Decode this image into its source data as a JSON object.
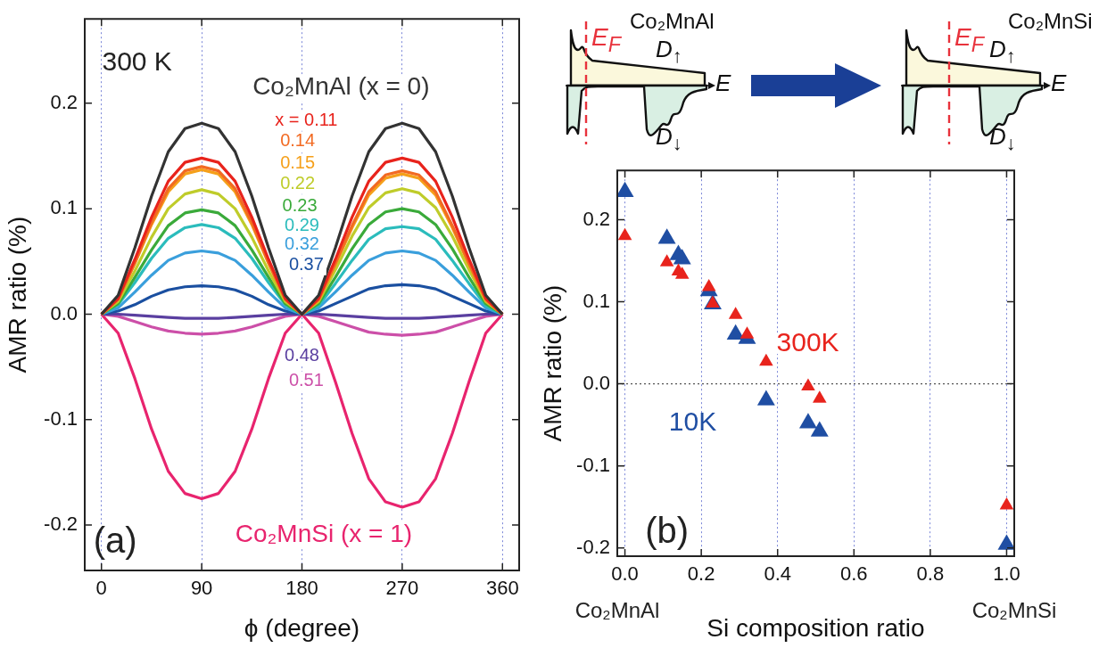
{
  "chart_data": [
    {
      "type": "line",
      "xlabel": "ϕ (degree)",
      "ylabel": "AMR ratio (%)",
      "xlim": [
        -15,
        375
      ],
      "xticks": [
        0,
        90,
        180,
        270,
        360
      ],
      "ylim": [
        -0.243,
        0.28
      ],
      "yticks": [
        {
          "value": -0.2,
          "label": "-0.2"
        },
        {
          "value": -0.1,
          "label": "-0.1"
        },
        {
          "value": 0,
          "label": "0.0"
        },
        {
          "value": 0.1,
          "label": "0.1"
        },
        {
          "value": 0.2,
          "label": "0.2"
        }
      ],
      "grid": "x",
      "legend": false,
      "marker": "none",
      "line_style": "solid",
      "annotations": [
        "300 K",
        "(a)"
      ],
      "x": [
        0,
        15,
        30,
        45,
        60,
        75,
        90,
        105,
        120,
        135,
        150,
        165,
        180,
        195,
        210,
        225,
        240,
        255,
        270,
        285,
        300,
        315,
        330,
        345,
        360
      ],
      "series": [
        {
          "name": "Co₂MnAl (x = 0)",
          "color": "#333333",
          "values": [
            0,
            0.018,
            0.063,
            0.112,
            0.154,
            0.176,
            0.181,
            0.176,
            0.154,
            0.112,
            0.063,
            0.018,
            0,
            0.018,
            0.063,
            0.112,
            0.154,
            0.176,
            0.181,
            0.176,
            0.154,
            0.112,
            0.063,
            0.018,
            0
          ]
        },
        {
          "name": "x = 0.11",
          "color": "#e8231c",
          "values": [
            0,
            0.015,
            0.052,
            0.092,
            0.126,
            0.144,
            0.148,
            0.144,
            0.126,
            0.092,
            0.052,
            0.015,
            0,
            0.015,
            0.052,
            0.092,
            0.126,
            0.144,
            0.148,
            0.144,
            0.126,
            0.092,
            0.052,
            0.015,
            0
          ]
        },
        {
          "name": "0.14",
          "color": "#f26a22",
          "values": [
            0,
            0.014,
            0.049,
            0.087,
            0.119,
            0.136,
            0.14,
            0.136,
            0.119,
            0.087,
            0.049,
            0.014,
            0,
            0.014,
            0.048,
            0.084,
            0.116,
            0.132,
            0.136,
            0.132,
            0.116,
            0.084,
            0.048,
            0.014,
            0
          ]
        },
        {
          "name": "0.15",
          "color": "#f5a01a",
          "values": [
            0,
            0.014,
            0.048,
            0.085,
            0.116,
            0.133,
            0.137,
            0.133,
            0.116,
            0.085,
            0.048,
            0.014,
            0,
            0.013,
            0.047,
            0.082,
            0.113,
            0.129,
            0.133,
            0.129,
            0.113,
            0.082,
            0.047,
            0.013,
            0
          ]
        },
        {
          "name": "0.22",
          "color": "#bfcc2a",
          "values": [
            0,
            0.012,
            0.041,
            0.073,
            0.1,
            0.114,
            0.118,
            0.114,
            0.1,
            0.073,
            0.041,
            0.012,
            0,
            0.012,
            0.042,
            0.074,
            0.101,
            0.115,
            0.119,
            0.115,
            0.101,
            0.074,
            0.042,
            0.012,
            0
          ]
        },
        {
          "name": "0.23",
          "color": "#3aaa3a",
          "values": [
            0,
            0.01,
            0.035,
            0.061,
            0.084,
            0.096,
            0.099,
            0.096,
            0.084,
            0.061,
            0.035,
            0.01,
            0,
            0.01,
            0.035,
            0.062,
            0.085,
            0.097,
            0.1,
            0.097,
            0.085,
            0.062,
            0.035,
            0.01,
            0
          ]
        },
        {
          "name": "0.29",
          "color": "#2bbcbc",
          "values": [
            0,
            0.009,
            0.03,
            0.053,
            0.072,
            0.082,
            0.085,
            0.082,
            0.072,
            0.053,
            0.03,
            0.009,
            0,
            0.008,
            0.029,
            0.051,
            0.071,
            0.081,
            0.083,
            0.081,
            0.071,
            0.051,
            0.029,
            0.008,
            0
          ]
        },
        {
          "name": "0.32",
          "color": "#3a9fdc",
          "values": [
            0,
            0.006,
            0.021,
            0.037,
            0.051,
            0.058,
            0.06,
            0.058,
            0.051,
            0.037,
            0.021,
            0.006,
            0,
            0.006,
            0.021,
            0.037,
            0.051,
            0.058,
            0.06,
            0.058,
            0.051,
            0.037,
            0.021,
            0.006,
            0
          ]
        },
        {
          "name": "0.37",
          "color": "#1a4fa0",
          "values": [
            0,
            0.003,
            0.009,
            0.017,
            0.023,
            0.026,
            0.027,
            0.026,
            0.023,
            0.017,
            0.009,
            0.003,
            0,
            0.003,
            0.01,
            0.017,
            0.024,
            0.027,
            0.028,
            0.027,
            0.024,
            0.017,
            0.01,
            0.003,
            0
          ]
        },
        {
          "name": "0.48",
          "color": "#5a3fa0",
          "values": [
            0,
            0,
            -0.001,
            -0.002,
            -0.003,
            -0.004,
            -0.004,
            -0.004,
            -0.003,
            -0.002,
            -0.001,
            0,
            0,
            0,
            -0.001,
            -0.002,
            -0.003,
            -0.004,
            -0.004,
            -0.004,
            -0.003,
            -0.002,
            -0.001,
            0,
            0
          ]
        },
        {
          "name": "0.51",
          "color": "#cc4fa8",
          "values": [
            0,
            -0.002,
            -0.007,
            -0.012,
            -0.016,
            -0.018,
            -0.019,
            -0.018,
            -0.016,
            -0.012,
            -0.007,
            -0.002,
            0,
            -0.002,
            -0.007,
            -0.012,
            -0.017,
            -0.019,
            -0.02,
            -0.019,
            -0.017,
            -0.012,
            -0.007,
            -0.002,
            0
          ]
        },
        {
          "name": "Co₂MnSi (x = 1)",
          "color": "#e8246e",
          "values": [
            0,
            -0.018,
            -0.061,
            -0.109,
            -0.149,
            -0.17,
            -0.175,
            -0.17,
            -0.149,
            -0.109,
            -0.061,
            -0.018,
            0,
            -0.018,
            -0.064,
            -0.113,
            -0.156,
            -0.178,
            -0.183,
            -0.178,
            -0.156,
            -0.113,
            -0.064,
            -0.018,
            0
          ]
        }
      ]
    },
    {
      "type": "scatter",
      "xlabel": "Si composition ratio",
      "ylabel": "AMR ratio (%)",
      "xlim": [
        -0.02,
        1.02
      ],
      "xticks": [
        {
          "value": 0,
          "label": "0.0"
        },
        {
          "value": 0.2,
          "label": "0.2"
        },
        {
          "value": 0.4,
          "label": "0.4"
        },
        {
          "value": 0.6,
          "label": "0.6"
        },
        {
          "value": 0.8,
          "label": "0.8"
        },
        {
          "value": 1,
          "label": "1.0"
        }
      ],
      "ylim": [
        -0.21,
        0.26
      ],
      "yticks": [
        {
          "value": -0.2,
          "label": "-0.2"
        },
        {
          "value": -0.1,
          "label": "-0.1"
        },
        {
          "value": 0,
          "label": "0.0"
        },
        {
          "value": 0.1,
          "label": "0.1"
        },
        {
          "value": 0.2,
          "label": "0.2"
        }
      ],
      "grid": "x",
      "legend": false,
      "marker": "triangle",
      "annotations": [
        "(b)",
        "Co₂MnAl",
        "Co₂MnSi"
      ],
      "ref_lines": [
        {
          "axis": "y",
          "value": 0,
          "color": "#555555",
          "line_style": "dotted"
        }
      ],
      "x": [
        0,
        0.11,
        0.14,
        0.15,
        0.22,
        0.23,
        0.29,
        0.32,
        0.37,
        0.48,
        0.51,
        1
      ],
      "series": [
        {
          "name": "300K",
          "color": "#e8231c",
          "values": [
            0.18,
            0.148,
            0.137,
            0.133,
            0.118,
            0.098,
            0.084,
            0.06,
            0.027,
            -0.003,
            -0.018,
            -0.148
          ]
        },
        {
          "name": "10K",
          "color": "#1f4ea3",
          "values": [
            0.234,
            0.177,
            0.157,
            0.152,
            0.113,
            0.097,
            0.06,
            0.055,
            -0.02,
            -0.048,
            -0.058,
            -0.196
          ]
        }
      ]
    },
    {
      "type": "other",
      "annotations": [
        "Co₂MnAl",
        "E$_{F}$",
        "D$_{↑}$",
        "D$_{↓}$",
        "E",
        "Co₂MnSi",
        "E$_{F}$",
        "D$_{↑}$",
        "D$_{↓}$",
        "E"
      ]
    }
  ]
}
